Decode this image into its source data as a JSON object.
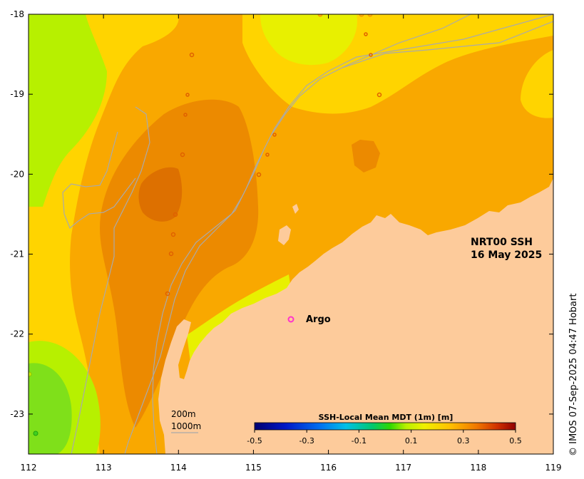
{
  "product": {
    "line1": "NRT00 SSH",
    "line2": "16 May 2025"
  },
  "argo": {
    "label": "Argo",
    "color": "#ff33cc"
  },
  "depth_legend": {
    "contour1": "200m",
    "contour2": "1000m"
  },
  "colorbar": {
    "title": "SSH-Local Mean MDT (1m) [m]",
    "tick_labels": [
      "-0.5",
      "-0.3",
      "-0.1",
      "0.1",
      "0.3",
      "0.5"
    ],
    "range": [
      -0.5,
      0.5
    ]
  },
  "copyright": "© IMOS 07-Sep-2025 04:47 Hobart",
  "axes": {
    "x_ticks": [
      "112",
      "113",
      "114",
      "115",
      "116",
      "117",
      "118",
      "119"
    ],
    "y_ticks": [
      "-18",
      "-19",
      "-20",
      "-21",
      "-22",
      "-23"
    ],
    "lon_range": [
      112,
      119
    ],
    "lat_range": [
      -23.5,
      -18
    ]
  },
  "colors": {
    "land": "#fdcb9b",
    "ssh_level_1": "#7fe01a",
    "ssh_level_2": "#b7f000",
    "ssh_level_3": "#e8f000",
    "ssh_level_4": "#ffd400",
    "ssh_level_5": "#f9a800",
    "ssh_level_6": "#ec8a00",
    "ssh_level_7": "#dd7000",
    "isobath": "#aaaaaa"
  }
}
